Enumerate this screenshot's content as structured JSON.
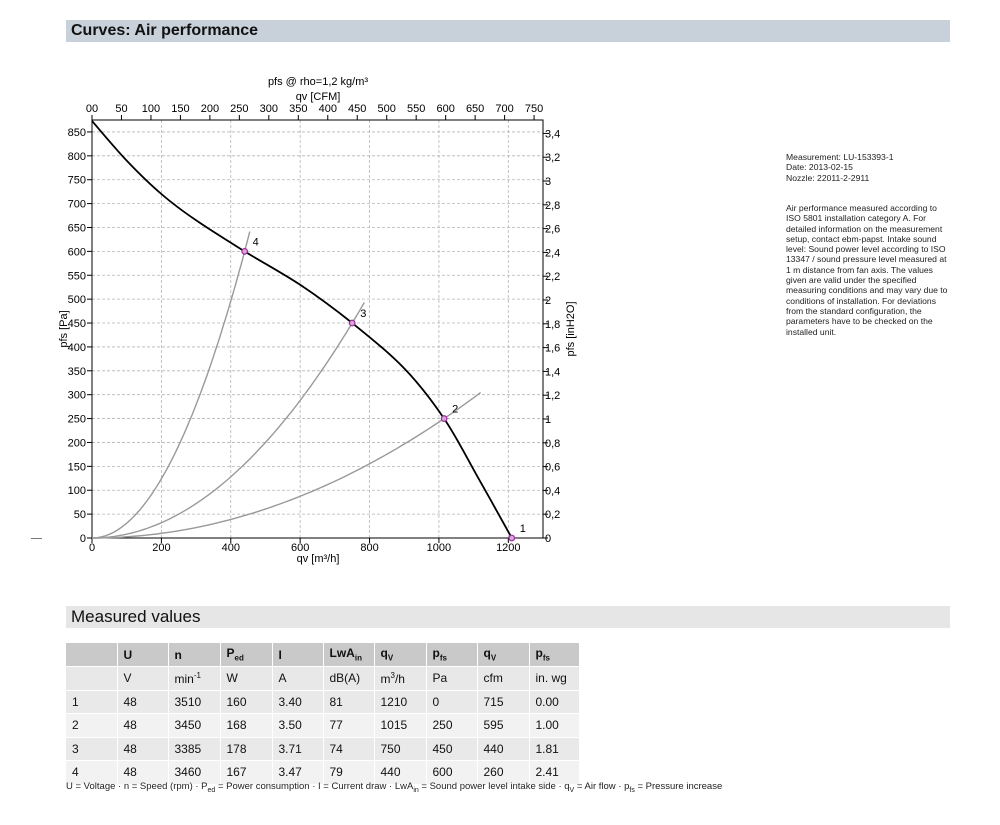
{
  "section_curves": "Curves: Air performance",
  "section_measured": "Measured values",
  "chart_data": {
    "type": "line",
    "title": "pfs @ rho=1,2 kg/m³",
    "x_label": "qv [m³/h]",
    "x_top_label": "qv [CFM]",
    "y_label": "pfs [Pa]",
    "y_right_label": "pfs [inH2O]",
    "x_range": [
      0,
      1300
    ],
    "y_range": [
      0,
      875
    ],
    "x_ticks": [
      0,
      200,
      400,
      600,
      800,
      1000,
      1200
    ],
    "y_ticks": [
      0,
      50,
      100,
      150,
      200,
      250,
      300,
      350,
      400,
      450,
      500,
      550,
      600,
      650,
      700,
      750,
      800,
      850
    ],
    "x_top_ticks": [
      "00",
      "50",
      "100",
      "150",
      "200",
      "250",
      "300",
      "350",
      "400",
      "450",
      "500",
      "550",
      "600",
      "650",
      "700",
      "750"
    ],
    "y_right_ticks": [
      "0",
      "0,2",
      "0,4",
      "0,6",
      "0,8",
      "1",
      "1,2",
      "1,4",
      "1,6",
      "1,8",
      "2",
      "2,2",
      "2,4",
      "2,6",
      "2,8",
      "3",
      "3,2",
      "3,4"
    ],
    "grid": true,
    "performance_curve": [
      {
        "x": 0,
        "y": 873
      },
      {
        "x": 100,
        "y": 790
      },
      {
        "x": 200,
        "y": 720
      },
      {
        "x": 300,
        "y": 665
      },
      {
        "x": 440,
        "y": 600
      },
      {
        "x": 600,
        "y": 530
      },
      {
        "x": 750,
        "y": 450
      },
      {
        "x": 900,
        "y": 355
      },
      {
        "x": 1015,
        "y": 250
      },
      {
        "x": 1110,
        "y": 130
      },
      {
        "x": 1210,
        "y": 0
      }
    ],
    "operating_points": [
      {
        "label": "1",
        "x": 1210,
        "y": 0
      },
      {
        "label": "2",
        "x": 1015,
        "y": 250
      },
      {
        "label": "3",
        "x": 750,
        "y": 450
      },
      {
        "label": "4",
        "x": 440,
        "y": 600
      }
    ],
    "system_curves": [
      {
        "point": "2",
        "x_end": 1120,
        "y_end": 304
      },
      {
        "point": "3",
        "x_end": 785,
        "y_end": 493
      },
      {
        "point": "4",
        "x_end": 455,
        "y_end": 625
      }
    ]
  },
  "info": {
    "measurement": "Measurement: LU-153393-1",
    "date": "Date: 2013-02-15",
    "nozzle": "Nozzle: 22011-2-2911",
    "description": "Air performance measured according to ISO 5801 installation category A. For detailed information on the measurement setup, contact ebm-papst. Intake sound level: Sound power level according to ISO 13347 / sound pressure level measured at 1 m distance from fan axis. The values given are valid under the specified measuring conditions and may vary due to conditions of installation. For deviations from the standard configuration, the parameters have to be checked on the installed unit."
  },
  "table": {
    "headers": [
      "U",
      "n",
      "P",
      "I",
      "LwA",
      "q",
      "p",
      "q",
      "p"
    ],
    "header_subs": [
      "",
      "",
      "ed",
      "",
      "in",
      "V",
      "fs",
      "V",
      "fs"
    ],
    "units": [
      "V",
      "min",
      "W",
      "A",
      "dB(A)",
      "m",
      "Pa",
      "cfm",
      "in. wg"
    ],
    "unit_sups": [
      "",
      "-1",
      "",
      "",
      "",
      "3",
      "",
      "",
      ""
    ],
    "unit_tails": [
      "",
      "",
      "",
      "",
      "",
      "/h",
      "",
      "",
      ""
    ],
    "rows": [
      [
        "1",
        "48",
        "3510",
        "160",
        "3.40",
        "81",
        "1210",
        "0",
        "715",
        "0.00"
      ],
      [
        "2",
        "48",
        "3450",
        "168",
        "3.50",
        "77",
        "1015",
        "250",
        "595",
        "1.00"
      ],
      [
        "3",
        "48",
        "3385",
        "178",
        "3.71",
        "74",
        "750",
        "450",
        "440",
        "1.81"
      ],
      [
        "4",
        "48",
        "3460",
        "167",
        "3.47",
        "79",
        "440",
        "600",
        "260",
        "2.41"
      ]
    ]
  },
  "legend": {
    "p1": "U = Voltage · n = Speed (rpm) · P",
    "s1": "ed",
    "p2": " = Power consumption · I = Current draw · LwA",
    "s2": "in",
    "p3": " = Sound power level intake side · q",
    "s3": "V",
    "p4": " = Air flow · p",
    "s4": "fs",
    "p5": " = Pressure increase"
  },
  "colors": {
    "header_bar": "#c8d0d9",
    "curve": "#000000",
    "system_curve": "#999999",
    "operating_point": "#9b2d9b"
  }
}
